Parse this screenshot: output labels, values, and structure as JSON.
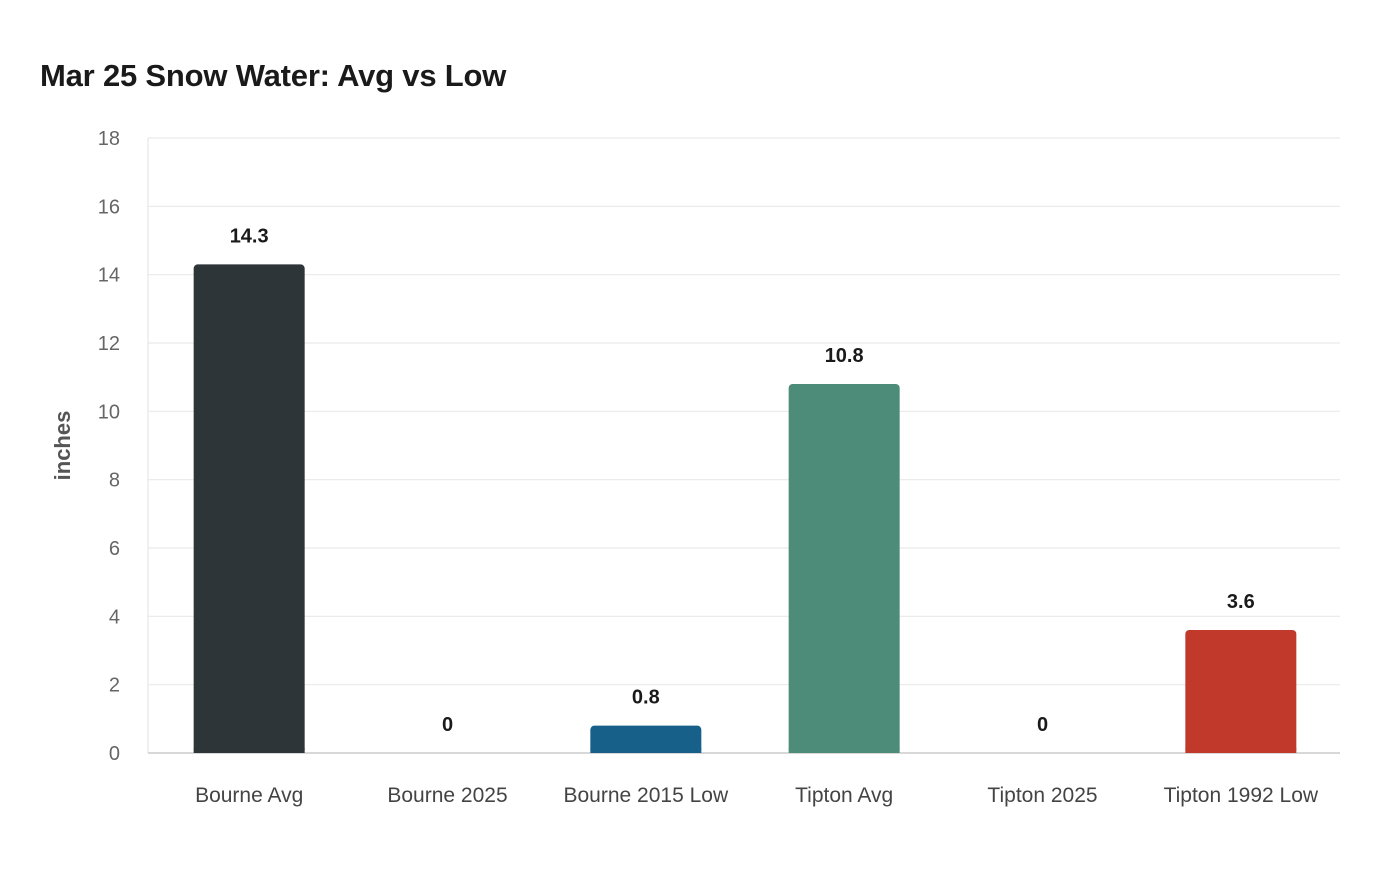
{
  "chart_data": {
    "type": "bar",
    "title": "Mar 25 Snow Water: Avg vs Low",
    "xlabel": "",
    "ylabel": "inches",
    "categories": [
      "Bourne Avg",
      "Bourne 2025",
      "Bourne 2015 Low",
      "Tipton Avg",
      "Tipton 2025",
      "Tipton 1992 Low"
    ],
    "values": [
      14.3,
      0,
      0.8,
      10.8,
      0,
      3.6
    ],
    "data_labels": [
      "14.3",
      "0",
      "0.8",
      "10.8",
      "0",
      "3.6"
    ],
    "colors": [
      "#2e3538",
      "#2e3538",
      "#17608a",
      "#4e8c7a",
      "#4e8c7a",
      "#c0392b"
    ],
    "ylim": [
      0,
      18
    ],
    "yticks": [
      0,
      2,
      4,
      6,
      8,
      10,
      12,
      14,
      16,
      18
    ],
    "grid": true,
    "legend": "none"
  }
}
